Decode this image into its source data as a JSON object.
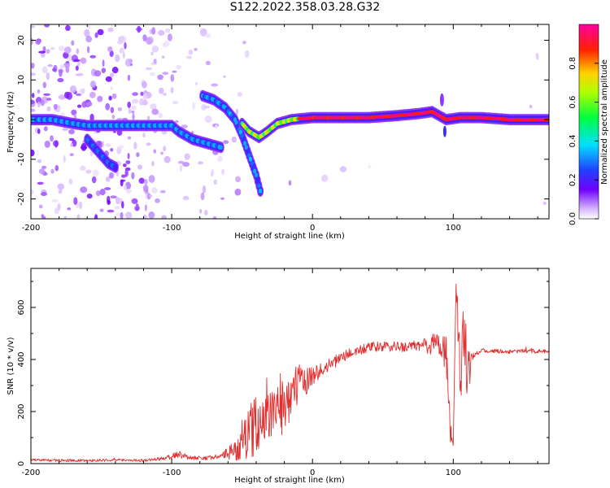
{
  "title": "S122.2022.358.03.28.G32",
  "chart_data": [
    {
      "type": "heatmap",
      "xlabel": "Height of straight line (km)",
      "ylabel": "Frequency (Hz)",
      "xlim": [
        -200,
        168
      ],
      "ylim": [
        -25,
        24
      ],
      "xticks": [
        -200,
        -100,
        0,
        100
      ],
      "yticks": [
        -20,
        -10,
        0,
        10,
        20
      ],
      "colorbar": {
        "label": "Normalized spectral amplitude",
        "range": [
          0,
          1
        ],
        "ticks": [
          "0.0",
          "0.2",
          "0.4",
          "0.6",
          "0.8"
        ],
        "colormap": "rainbow (white-violet-blue-cyan-green-yellow-red-magenta)"
      },
      "tracks": [
        {
          "points": [
            [
              -200,
              0
            ],
            [
              -185,
              0
            ],
            [
              -170,
              -1
            ],
            [
              -160,
              -1.5
            ],
            [
              -150,
              -1.5
            ],
            [
              -140,
              -1.5
            ],
            [
              -130,
              -1.5
            ],
            [
              -120,
              -1.5
            ],
            [
              -110,
              -1.5
            ],
            [
              -100,
              -1.5
            ],
            [
              -95,
              -3
            ],
            [
              -85,
              -5
            ],
            [
              -75,
              -6
            ],
            [
              -65,
              -7
            ]
          ],
          "amplitude": 0.35
        },
        {
          "points": [
            [
              -160,
              -5
            ],
            [
              -155,
              -7
            ],
            [
              -150,
              -9
            ],
            [
              -145,
              -11
            ],
            [
              -140,
              -12
            ]
          ],
          "amplitude": 0.3
        },
        {
          "points": [
            [
              -78,
              6
            ],
            [
              -70,
              5
            ],
            [
              -62,
              3
            ],
            [
              -55,
              0
            ],
            [
              -50,
              -4
            ],
            [
              -45,
              -9
            ],
            [
              -40,
              -14
            ],
            [
              -37,
              -18
            ]
          ],
          "amplitude": 0.35
        },
        {
          "points": [
            [
              -50,
              -1
            ],
            [
              -45,
              -3
            ],
            [
              -38,
              -4.5
            ],
            [
              -32,
              -3
            ],
            [
              -25,
              -1
            ],
            [
              -15,
              0
            ],
            [
              0,
              0.5
            ],
            [
              20,
              0.5
            ],
            [
              40,
              0.5
            ],
            [
              60,
              1
            ],
            [
              75,
              1.5
            ],
            [
              85,
              2
            ],
            [
              95,
              0
            ],
            [
              105,
              0.5
            ],
            [
              120,
              0.5
            ],
            [
              140,
              0
            ],
            [
              168,
              0
            ]
          ],
          "amplitude": 0.75
        }
      ]
    },
    {
      "type": "line",
      "xlabel": "Height of straight line (km)",
      "ylabel": "SNR (10 * v/v)",
      "xlim": [
        -200,
        168
      ],
      "ylim": [
        0,
        750
      ],
      "xticks": [
        -200,
        -100,
        0,
        100
      ],
      "yticks": [
        0,
        200,
        400,
        600
      ],
      "series": [
        {
          "color": "#e03030",
          "x": [
            -200,
            -180,
            -160,
            -140,
            -120,
            -105,
            -95,
            -85,
            -75,
            -65,
            -55,
            -50,
            -45,
            -40,
            -35,
            -30,
            -25,
            -20,
            -15,
            -10,
            -5,
            0,
            5,
            10,
            15,
            20,
            25,
            30,
            40,
            50,
            60,
            70,
            80,
            90,
            95,
            98,
            100,
            102,
            105,
            108,
            110,
            115,
            120,
            130,
            140,
            150,
            160,
            168
          ],
          "y": [
            15,
            12,
            12,
            14,
            12,
            20,
            35,
            22,
            22,
            28,
            50,
            90,
            120,
            150,
            170,
            190,
            200,
            240,
            270,
            300,
            320,
            340,
            355,
            370,
            390,
            405,
            420,
            430,
            445,
            450,
            448,
            450,
            455,
            460,
            430,
            120,
            60,
            700,
            330,
            560,
            360,
            420,
            435,
            432,
            430,
            432,
            432,
            430
          ],
          "noise": [
            4,
            5,
            5,
            5,
            5,
            8,
            14,
            8,
            8,
            10,
            40,
            80,
            100,
            120,
            80,
            90,
            100,
            130,
            100,
            80,
            60,
            40,
            30,
            25,
            25,
            22,
            20,
            20,
            20,
            20,
            20,
            20,
            30,
            60,
            80,
            40,
            10,
            40,
            120,
            160,
            120,
            10,
            8,
            8,
            8,
            8,
            8,
            8
          ]
        }
      ]
    }
  ]
}
